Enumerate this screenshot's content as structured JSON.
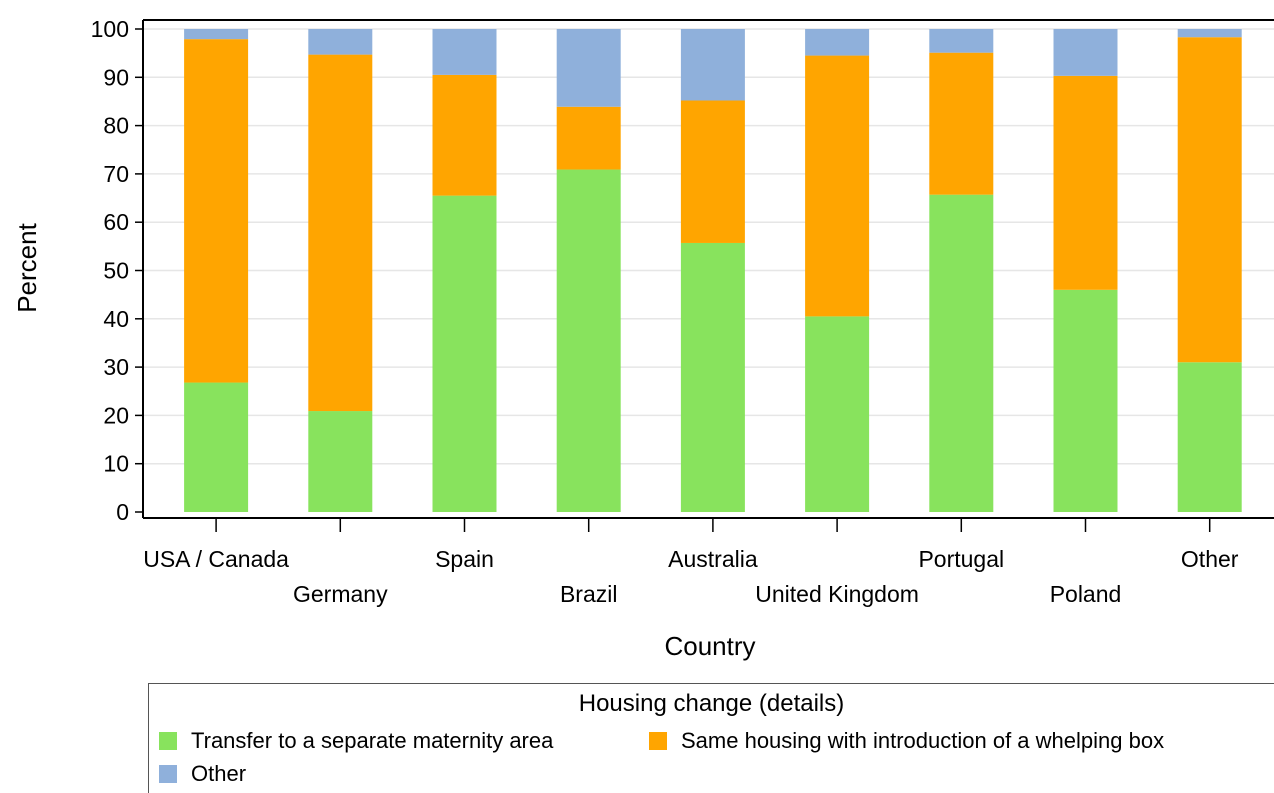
{
  "chart_data": {
    "type": "bar",
    "stacked": true,
    "categories": [
      "USA / Canada",
      "Germany",
      "Spain",
      "Brazil",
      "Australia",
      "United Kingdom",
      "Portugal",
      "Poland",
      "Other"
    ],
    "series": [
      {
        "name": "Transfer to a separate maternity area",
        "color": "#88e35d",
        "values": [
          26.8,
          20.9,
          65.5,
          70.9,
          55.7,
          40.5,
          65.7,
          46.0,
          31.0
        ]
      },
      {
        "name": "Same housing with introduction of a whelping box",
        "color": "#ffa500",
        "values": [
          71.1,
          73.8,
          25.0,
          13.0,
          29.5,
          54.0,
          29.4,
          44.3,
          67.3
        ]
      },
      {
        "name": "Other",
        "color": "#8fb0db",
        "values": [
          2.1,
          5.3,
          9.5,
          16.1,
          14.8,
          5.5,
          4.9,
          9.7,
          1.7
        ]
      }
    ],
    "xlabel": "Country",
    "ylabel": "Percent",
    "ylim": [
      0,
      100
    ],
    "yticks": [
      "0",
      "10",
      "20",
      "30",
      "40",
      "50",
      "60",
      "70",
      "80",
      "90",
      "100"
    ],
    "grid": true,
    "legend": {
      "title": "Housing change (details)",
      "placement": "bottom"
    }
  }
}
